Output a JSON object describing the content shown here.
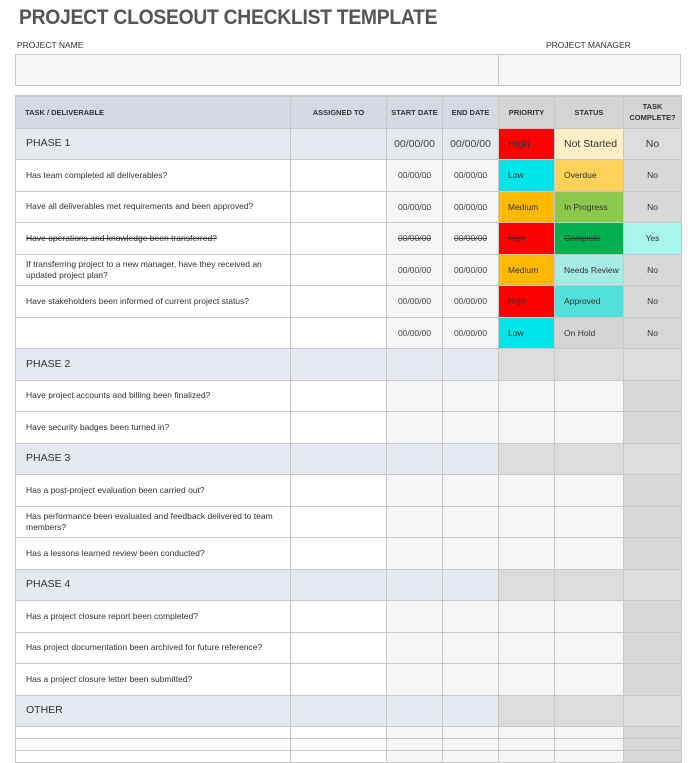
{
  "title": "PROJECT CLOSEOUT CHECKLIST TEMPLATE",
  "project_name_label": "PROJECT NAME",
  "project_manager_label": "PROJECT MANAGER",
  "headers": {
    "task": "TASK  /  DELIVERABLE",
    "assigned": "ASSIGNED TO",
    "start": "START DATE",
    "end": "END DATE",
    "priority": "PRIORITY",
    "status": "STATUS",
    "complete": "TASK COMPLETE?"
  },
  "colors": {
    "High": "#ff0000",
    "Low": "#00e5ea",
    "Medium": "#ffb900",
    "Not Started": "#fff0c8",
    "Overdue": "#ffd35a",
    "In Progress": "#8cc84b",
    "Complete": "#00b050",
    "Needs Review": "#a6ebe6",
    "Approved": "#52e0dc",
    "On Hold": "#d4d4d4",
    "Yes": "#a8f5ee"
  },
  "rows": [
    {
      "type": "phase",
      "task": "PHASE 1",
      "start": "00/00/00",
      "end": "00/00/00",
      "priority": "High",
      "status": "Not Started",
      "complete": "No"
    },
    {
      "task": "Has team completed all deliverables?",
      "start": "00/00/00",
      "end": "00/00/00",
      "priority": "Low",
      "status": "Overdue",
      "complete": "No"
    },
    {
      "task": "Have all deliverables met requirements and been approved?",
      "start": "00/00/00",
      "end": "00/00/00",
      "priority": "Medium",
      "status": "In Progress",
      "complete": "No"
    },
    {
      "task": "Have operations and knowledge been transferred?",
      "start": "00/00/00",
      "end": "00/00/00",
      "priority": "High",
      "status": "Complete",
      "complete": "Yes",
      "struck": true
    },
    {
      "task": "If transferring project to a new manager, have they received an updated project plan?",
      "start": "00/00/00",
      "end": "00/00/00",
      "priority": "Medium",
      "status": "Needs Review",
      "complete": "No"
    },
    {
      "task": "Have stakeholders been informed of current project status?",
      "start": "00/00/00",
      "end": "00/00/00",
      "priority": "High",
      "status": "Approved",
      "complete": "No"
    },
    {
      "task": "",
      "start": "00/00/00",
      "end": "00/00/00",
      "priority": "Low",
      "status": "On Hold",
      "complete": "No"
    },
    {
      "type": "phase",
      "task": "PHASE 2"
    },
    {
      "task": "Have project accounts and billing been finalized?"
    },
    {
      "task": "Have security badges been turned in?"
    },
    {
      "type": "phase",
      "task": "PHASE 3"
    },
    {
      "task": "Has a post-project evaluation been carried out?"
    },
    {
      "task": "Has performance been evaluated and feedback delivered to team members?"
    },
    {
      "task": "Has a lessons learned review been conducted?"
    },
    {
      "type": "phase",
      "task": "PHASE 4"
    },
    {
      "task": "Has a project closure report been completed?"
    },
    {
      "task": "Has project documentation been archived for future reference?"
    },
    {
      "task": "Has a project closure letter been submitted?"
    },
    {
      "type": "phase",
      "task": "OTHER"
    },
    {
      "type": "thin",
      "task": ""
    },
    {
      "type": "thin",
      "task": ""
    },
    {
      "type": "thin",
      "task": ""
    }
  ]
}
